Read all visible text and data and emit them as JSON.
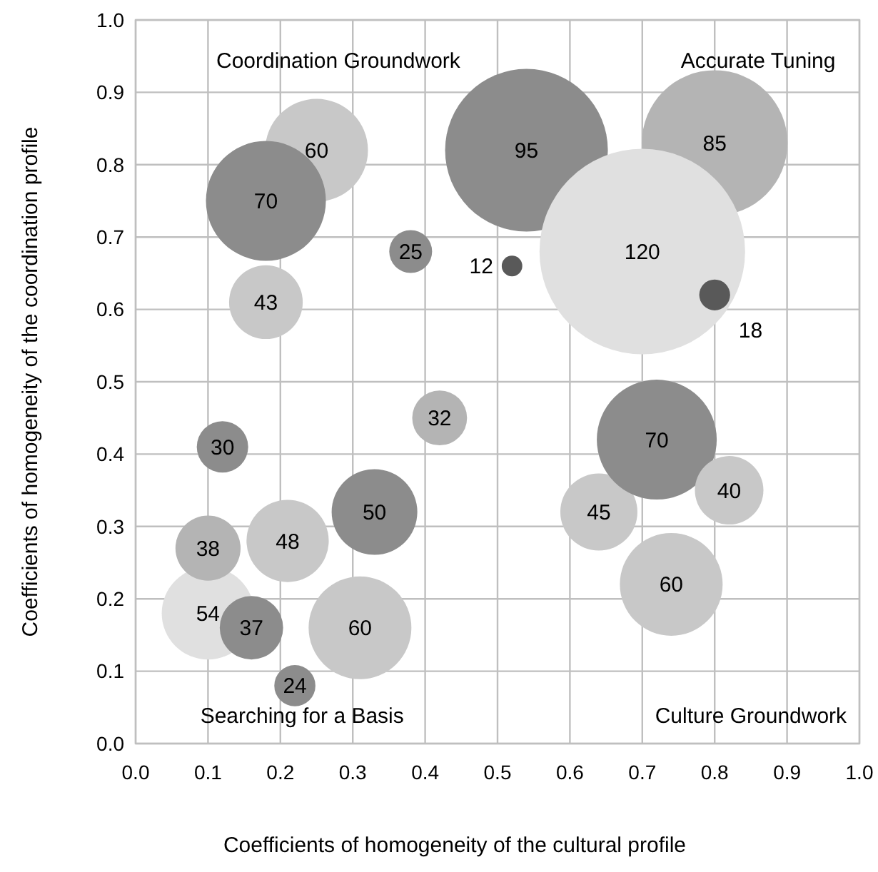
{
  "chart_data": {
    "type": "bubble",
    "xlabel": "Coefficients of homogeneity of the cultural profile",
    "ylabel": "Coefficients of homogeneity of the coordination profile",
    "xlim": [
      0,
      1
    ],
    "ylim": [
      0,
      1
    ],
    "xticks": [
      {
        "value": 0,
        "label": "0.0"
      },
      {
        "value": 0.1,
        "label": "0.1"
      },
      {
        "value": 0.2,
        "label": "0.2"
      },
      {
        "value": 0.3,
        "label": "0.3"
      },
      {
        "value": 0.4,
        "label": "0.4"
      },
      {
        "value": 0.5,
        "label": "0.5"
      },
      {
        "value": 0.6,
        "label": "0.6"
      },
      {
        "value": 0.7,
        "label": "0.7"
      },
      {
        "value": 0.8,
        "label": "0.8"
      },
      {
        "value": 0.9,
        "label": "0.9"
      },
      {
        "value": 1,
        "label": "1.0"
      }
    ],
    "yticks": [
      {
        "value": 0,
        "label": "0.0"
      },
      {
        "value": 0.1,
        "label": "0.1"
      },
      {
        "value": 0.2,
        "label": "0.2"
      },
      {
        "value": 0.3,
        "label": "0.3"
      },
      {
        "value": 0.4,
        "label": "0.4"
      },
      {
        "value": 0.5,
        "label": "0.5"
      },
      {
        "value": 0.6,
        "label": "0.6"
      },
      {
        "value": 0.7,
        "label": "0.7"
      },
      {
        "value": 0.8,
        "label": "0.8"
      },
      {
        "value": 0.9,
        "label": "0.9"
      },
      {
        "value": 1,
        "label": "1.0"
      }
    ],
    "grid": true,
    "annotations": [
      "Coordination Groundwork",
      "Accurate Tuning",
      "Searching for a Basis",
      "Culture Groundwork",
      {
        "text": "60",
        "x": 0.25,
        "y": 0.82
      },
      {
        "text": "70",
        "x": 0.18,
        "y": 0.75
      },
      {
        "text": "43",
        "x": 0.18,
        "y": 0.61
      },
      {
        "text": "25",
        "x": 0.38,
        "y": 0.68
      },
      {
        "text": "95",
        "x": 0.54,
        "y": 0.82
      },
      {
        "text": "85",
        "x": 0.8,
        "y": 0.83
      },
      {
        "text": "120",
        "x": 0.7,
        "y": 0.68
      },
      {
        "text": "12",
        "x": 0.52,
        "y": 0.66
      },
      {
        "text": "18",
        "x": 0.8,
        "y": 0.62
      },
      {
        "text": "30",
        "x": 0.12,
        "y": 0.41
      },
      {
        "text": "32",
        "x": 0.42,
        "y": 0.45
      },
      {
        "text": "50",
        "x": 0.33,
        "y": 0.32
      },
      {
        "text": "48",
        "x": 0.21,
        "y": 0.28
      },
      {
        "text": "54",
        "x": 0.1,
        "y": 0.18
      },
      {
        "text": "38",
        "x": 0.1,
        "y": 0.27
      },
      {
        "text": "37",
        "x": 0.16,
        "y": 0.16
      },
      {
        "text": "60",
        "x": 0.31,
        "y": 0.16
      },
      {
        "text": "24",
        "x": 0.22,
        "y": 0.08
      },
      {
        "text": "45",
        "x": 0.64,
        "y": 0.32
      },
      {
        "text": "70",
        "x": 0.72,
        "y": 0.42
      },
      {
        "text": "40",
        "x": 0.82,
        "y": 0.35
      },
      {
        "text": "60",
        "x": 0.74,
        "y": 0.22
      }
    ],
    "series": [
      {
        "x": [
          0.25,
          0.18,
          0.18,
          0.38,
          0.54,
          0.8,
          0.7,
          0.52,
          0.8,
          0.12,
          0.42,
          0.33,
          0.21,
          0.1,
          0.1,
          0.16,
          0.31,
          0.22,
          0.64,
          0.72,
          0.82,
          0.74
        ],
        "values": [
          0.82,
          0.75,
          0.61,
          0.68,
          0.82,
          0.83,
          0.68,
          0.66,
          0.62,
          0.41,
          0.45,
          0.32,
          0.28,
          0.18,
          0.27,
          0.16,
          0.16,
          0.08,
          0.32,
          0.42,
          0.35,
          0.22
        ],
        "sizes": [
          0.25,
          0.3403,
          0.1284,
          0.0434,
          0.6267,
          0.5017,
          1,
          0.01,
          0.0225,
          0.0625,
          0.0711,
          0.1736,
          0.16,
          0.2025,
          0.1003,
          0.0951,
          0.25,
          0.04,
          0.1406,
          0.3403,
          0.1111,
          0.25
        ],
        "colors": [
          "#c8c8c8",
          "#8c8c8c",
          "#c8c8c8",
          "#8c8c8c",
          "#8c8c8c",
          "#b4b4b4",
          "#e0e0e0",
          "#595959",
          "#595959",
          "#8c8c8c",
          "#b4b4b4",
          "#8c8c8c",
          "#c8c8c8",
          "#e0e0e0",
          "#b4b4b4",
          "#8c8c8c",
          "#c8c8c8",
          "#8c8c8c",
          "#c8c8c8",
          "#8c8c8c",
          "#c8c8c8",
          "#c8c8c8"
        ]
      }
    ]
  }
}
